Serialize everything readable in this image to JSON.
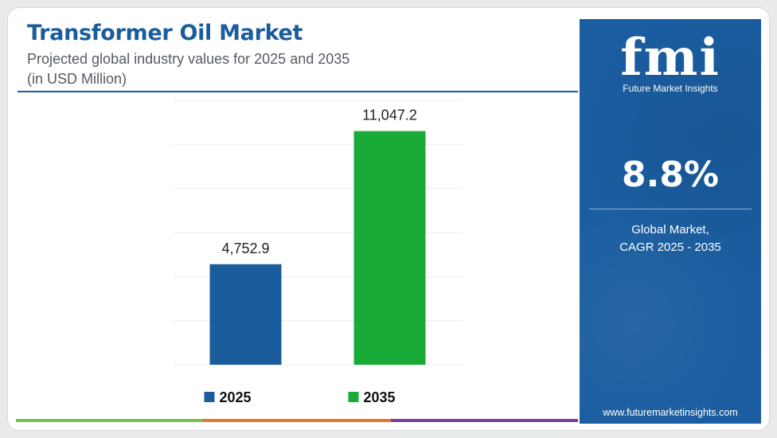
{
  "header": {
    "title": "Transformer Oil Market",
    "subtitle": "Projected global industry values for 2025 and 2035",
    "unit": "(in USD Million)"
  },
  "chart_data": {
    "type": "bar",
    "categories": [
      "2025",
      "2035"
    ],
    "values": [
      4752.9,
      11047.2
    ],
    "value_labels": [
      "4,752.9",
      "11,047.2"
    ],
    "colors": [
      "#1b5c9c",
      "#1aaa38"
    ],
    "ylim": [
      0,
      12500
    ],
    "grid": true,
    "legend": {
      "position": "bottom",
      "entries": [
        {
          "label": "2025",
          "color": "#1b5c9c"
        },
        {
          "label": "2035",
          "color": "#1aaa38"
        }
      ]
    }
  },
  "sidebar": {
    "logo_text": "fmi",
    "logo_tagline": "Future Market Insights",
    "cagr_value": "8.8%",
    "cagr_label_line1": "Global Market,",
    "cagr_label_line2": "CAGR 2025 - 2035",
    "website": "www.futuremarketinsights.com"
  },
  "colors": {
    "brand_blue": "#1a5da0",
    "accent_green": "#1aaa38",
    "bottom_bar": [
      "#7cc04b",
      "#e8742a",
      "#7a3e9d"
    ]
  }
}
